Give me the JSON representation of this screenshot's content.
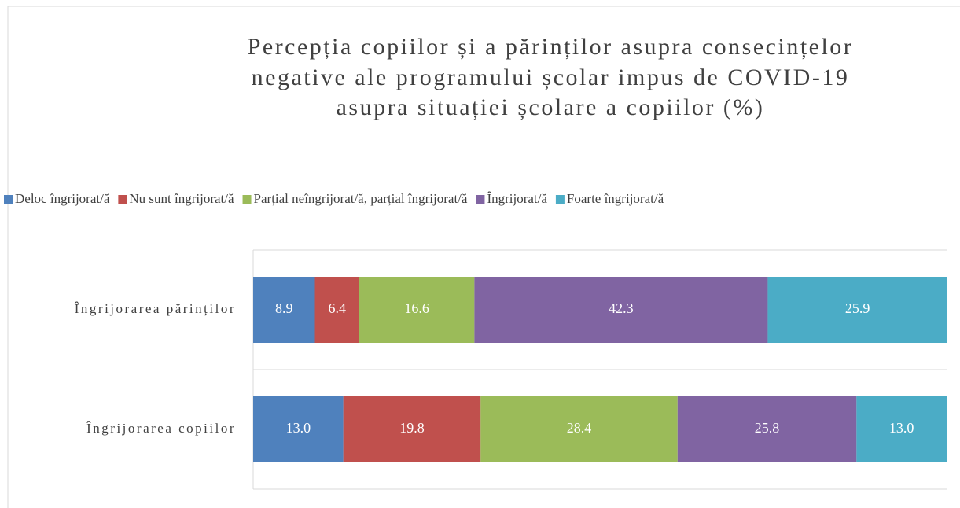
{
  "chart_data": {
    "type": "stacked-bar-horizontal",
    "title": [
      "Percepția copiilor și a părinților asupra consecințelor",
      "negative ale programului școlar impus de COVID-19",
      "asupra situației școlare a copiilor (%)"
    ],
    "categories": [
      "Îngrijorarea părinților",
      "Îngrijorarea copiilor"
    ],
    "series": [
      {
        "name": "Deloc îngrijorat/ă",
        "color": "#4f81bd",
        "values": [
          8.9,
          13.0
        ],
        "value_labels": [
          "8.9",
          "13.0"
        ]
      },
      {
        "name": "Nu sunt îngrijorat/ă",
        "color": "#c0504d",
        "values": [
          6.4,
          19.8
        ],
        "value_labels": [
          "6.4",
          "19.8"
        ]
      },
      {
        "name": "Parțial neîngrijorat/ă, parțial îngrijorat/ă",
        "color": "#9bbb59",
        "values": [
          16.6,
          28.4
        ],
        "value_labels": [
          "16.6",
          "28.4"
        ]
      },
      {
        "name": "Îngrijorat/ă",
        "color": "#8064a2",
        "values": [
          42.3,
          25.8
        ],
        "value_labels": [
          "42.3",
          "25.8"
        ]
      },
      {
        "name": "Foarte îngrijorat/ă",
        "color": "#4bacc6",
        "values": [
          25.9,
          13.0
        ],
        "value_labels": [
          "25.9",
          "13.0"
        ]
      }
    ],
    "xlim": [
      0,
      100
    ],
    "legend": "top"
  }
}
